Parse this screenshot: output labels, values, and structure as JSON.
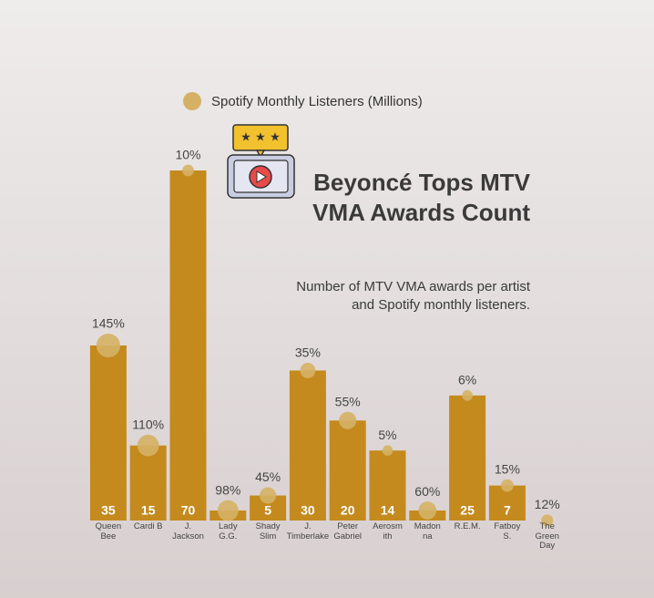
{
  "chart_data": {
    "type": "bar",
    "title": "Beyoncé Tops MTV VMA Awards Count",
    "subtitle": "Number of MTV VMA awards per artist and Spotify monthly listeners.",
    "categories": [
      "Queen\nBee",
      "Cardi B",
      "J.\nJackson",
      "Lady\nG.G.",
      "Shady\nSlim",
      "J.\nTimberlake",
      "Peter\nGabriel",
      "Aerosm\nith",
      "Madon\nna",
      "R.E.M.",
      "Fatboy\nS.",
      "The\nGreen\nDay"
    ],
    "values": [
      35,
      15,
      70,
      2,
      5,
      30,
      20,
      14,
      2,
      25,
      7,
      0
    ],
    "value_labels": [
      "35",
      "15",
      "70",
      null,
      "5",
      "30",
      "20",
      "14",
      null,
      "25",
      "7",
      null
    ],
    "color": "#c48a1e",
    "ylim": [
      0,
      70
    ],
    "series": [
      {
        "name": "Spotify Monthly Listeners (Millions)",
        "color": "#d5b165",
        "values": [
          145,
          110,
          10,
          98,
          45,
          35,
          55,
          5,
          60,
          6,
          15,
          12
        ],
        "value_labels": [
          "145%",
          "110%",
          "10%",
          "98%",
          "45%",
          "35%",
          "55%",
          "5%",
          "60%",
          "6%",
          "15%",
          "12%"
        ]
      }
    ]
  }
}
